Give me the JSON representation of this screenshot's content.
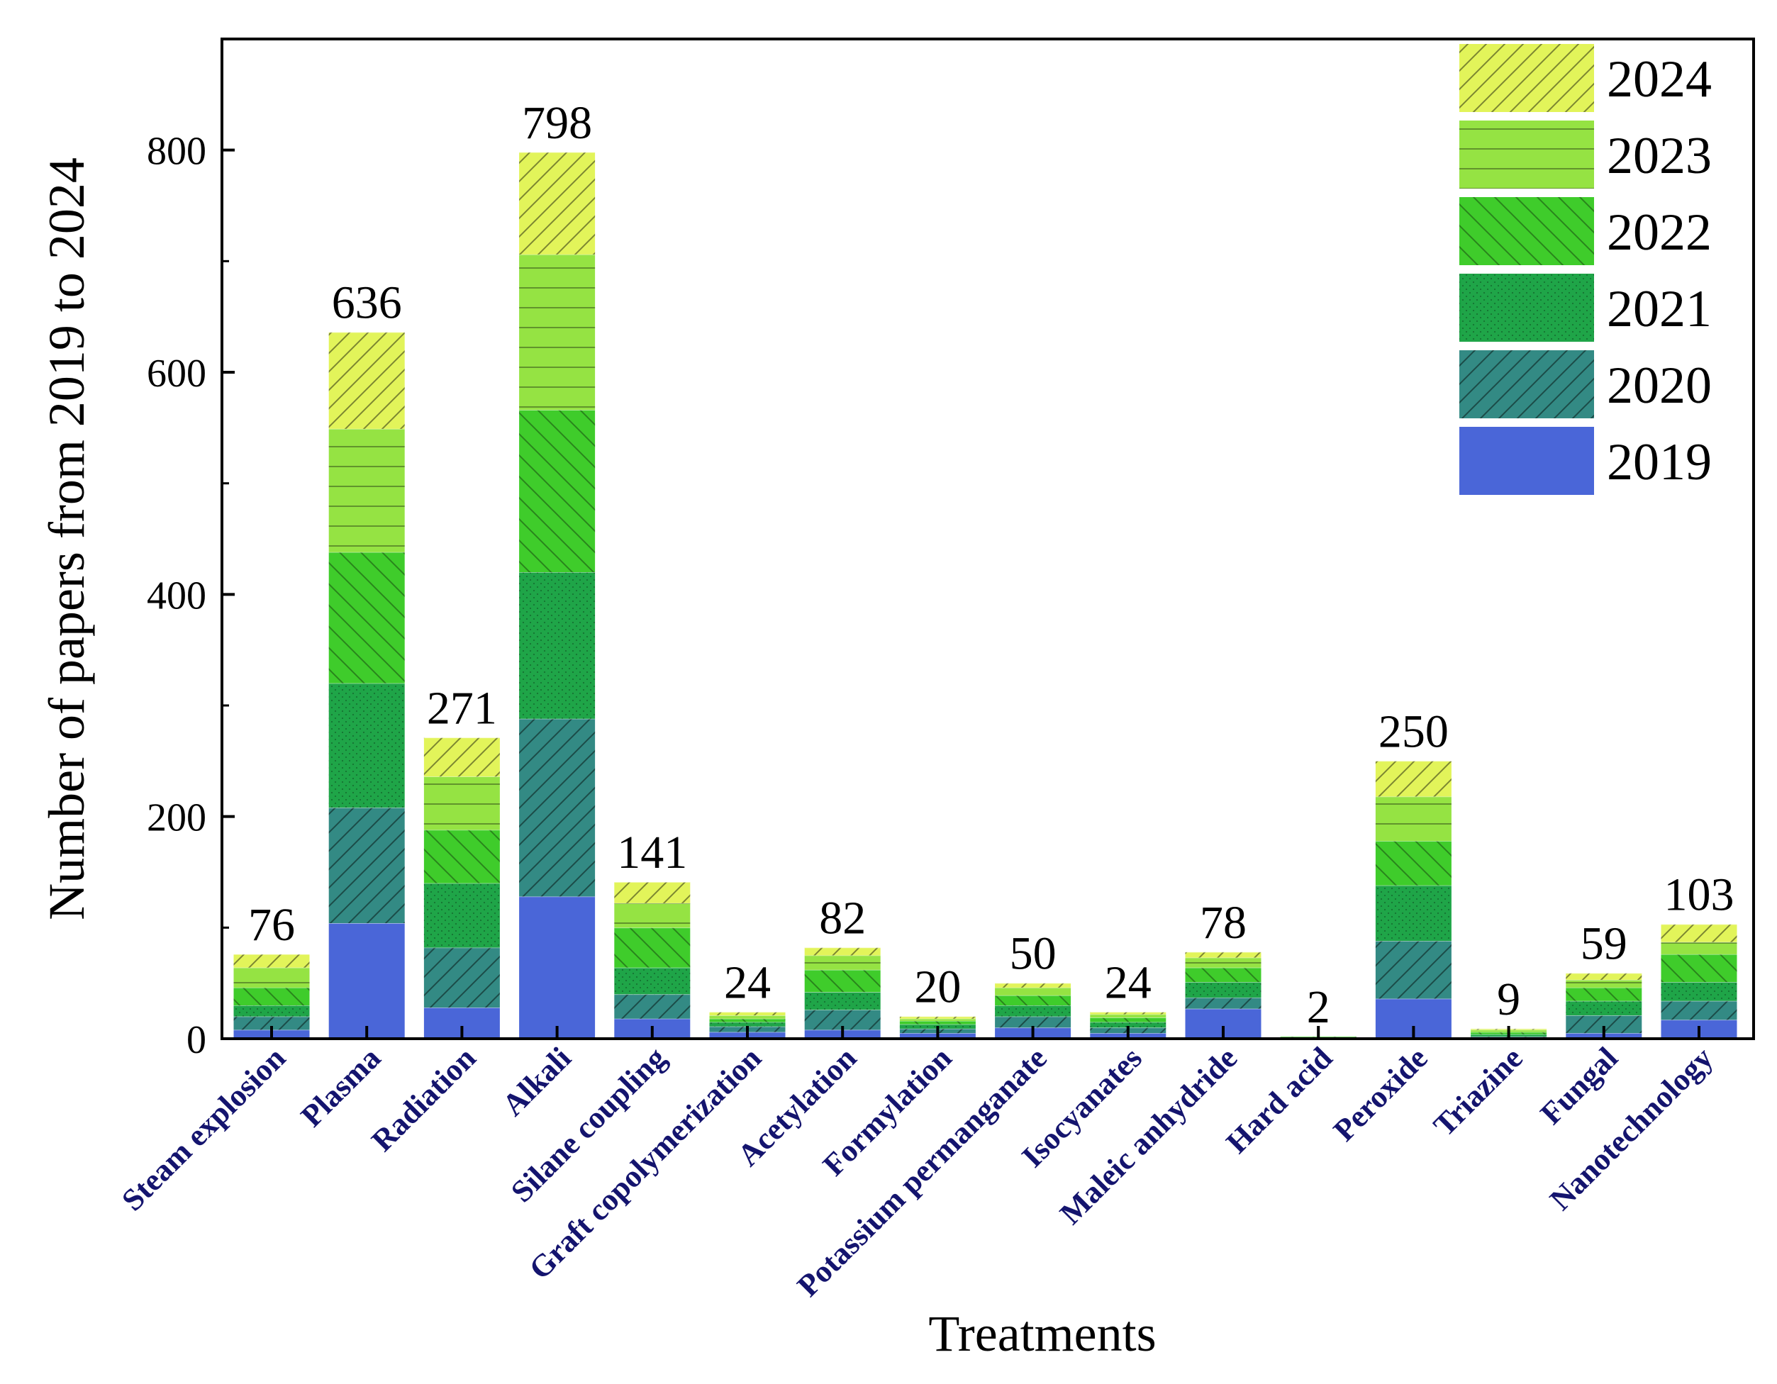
{
  "chart_data": {
    "type": "bar",
    "stacked": true,
    "title": "",
    "xlabel": "Treatments",
    "ylabel": "Number of papers from 2019 to 2024",
    "ylim": [
      0,
      900
    ],
    "yticks": [
      0,
      200,
      400,
      600,
      800
    ],
    "grid": false,
    "legend_position": "top-right",
    "categories": [
      "Steam explosion",
      "Plasma",
      "Radiation",
      "Alkali",
      "Silane coupling",
      "Graft copolymerization",
      "Acetylation",
      "Formylation",
      "Potassium permanganate",
      "Isocyanates",
      "Maleic anhydride",
      "Hard acid",
      "Peroxide",
      "Triazine",
      "Fungal",
      "Nanotechnology"
    ],
    "totals": [
      76,
      636,
      271,
      798,
      141,
      24,
      82,
      20,
      50,
      24,
      78,
      2,
      250,
      9,
      59,
      103
    ],
    "series": [
      {
        "name": "2019",
        "color": "#4a66d8",
        "pattern": "none",
        "values": [
          8,
          104,
          28,
          128,
          18,
          6,
          8,
          5,
          10,
          5,
          27,
          0,
          36,
          1,
          5,
          17
        ]
      },
      {
        "name": "2020",
        "color": "#338a84",
        "pattern": "slash",
        "values": [
          12,
          104,
          54,
          160,
          22,
          5,
          18,
          4,
          10,
          5,
          10,
          0,
          52,
          1,
          16,
          17
        ]
      },
      {
        "name": "2021",
        "color": "#1fa548",
        "pattern": "dots",
        "values": [
          10,
          112,
          58,
          132,
          24,
          4,
          16,
          4,
          10,
          5,
          14,
          1,
          50,
          2,
          13,
          17
        ]
      },
      {
        "name": "2022",
        "color": "#3fcc2b",
        "pattern": "backslash",
        "values": [
          16,
          118,
          48,
          146,
          36,
          3,
          20,
          3,
          9,
          4,
          13,
          1,
          40,
          2,
          12,
          25
        ]
      },
      {
        "name": "2023",
        "color": "#95e343",
        "pattern": "hline",
        "values": [
          18,
          111,
          48,
          140,
          22,
          3,
          13,
          2,
          7,
          3,
          9,
          0,
          40,
          2,
          7,
          11
        ]
      },
      {
        "name": "2024",
        "color": "#e2f45a",
        "pattern": "slash",
        "values": [
          12,
          87,
          35,
          92,
          19,
          3,
          7,
          2,
          4,
          2,
          5,
          0,
          32,
          1,
          6,
          16
        ]
      }
    ]
  }
}
